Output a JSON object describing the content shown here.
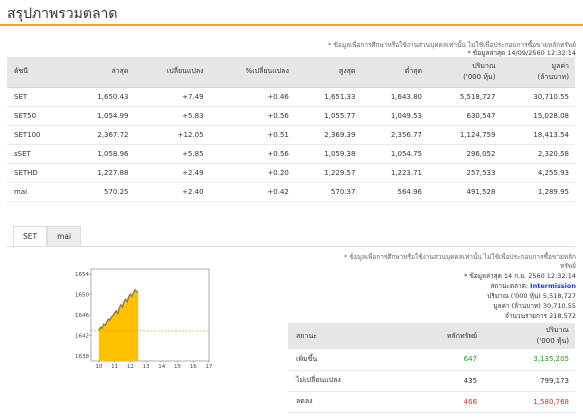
{
  "page": {
    "title": "สรุปภาพรวมตลาด",
    "note": "* ข้อมูลเพื่อการศึกษาหรือใช้งานส่วนบุคคลเท่านั้น ไม่ใช้เพื่อประกอบการซื้อขายหลักทรัพย์",
    "last_update": "* ข้อมูลล่าสุด 14/09/2560 12:32:14"
  },
  "table": {
    "headers": [
      "ดัชนี",
      "ล่าสุด",
      "เปลี่ยนแปลง",
      "%เปลี่ยนแปลง",
      "สูงสุด",
      "ต่ำสุด",
      "ปริมาณ\n('000 หุ้น)",
      "มูลค่า\n(ล้านบาท)"
    ],
    "rows": [
      {
        "name": "SET",
        "last": "1,650.43",
        "change": "+7.49",
        "pct": "+0.46",
        "high": "1,651.33",
        "low": "1,643.80",
        "volume": "5,518,727",
        "value": "30,710.55",
        "link": false
      },
      {
        "name": "SET50",
        "last": "1,054.99",
        "change": "+5.83",
        "pct": "+0.56",
        "high": "1,055.77",
        "low": "1,049.53",
        "volume": "630,547",
        "value": "15,028.08",
        "link": true
      },
      {
        "name": "SET100",
        "last": "2,367.72",
        "change": "+12.05",
        "pct": "+0.51",
        "high": "2,369.39",
        "low": "2,356.77",
        "volume": "1,124,759",
        "value": "18,413.54",
        "link": true
      },
      {
        "name": "sSET",
        "last": "1,058.96",
        "change": "+5.85",
        "pct": "+0.56",
        "high": "1,059.38",
        "low": "1,054.75",
        "volume": "296,052",
        "value": "2,320.58",
        "link": true
      },
      {
        "name": "SETHD",
        "last": "1,227.88",
        "change": "+2.49",
        "pct": "+0.20",
        "high": "1,229.57",
        "low": "1,223.71",
        "volume": "257,533",
        "value": "4,255.93",
        "link": true
      },
      {
        "name": "mai",
        "last": "570.25",
        "change": "+2.40",
        "pct": "+0.42",
        "high": "570.37",
        "low": "564.96",
        "volume": "491,528",
        "value": "1,289.95",
        "link": false
      }
    ]
  },
  "tabs": [
    {
      "label": "SET",
      "active": true
    },
    {
      "label": "mai",
      "active": false
    }
  ],
  "chart_data": {
    "type": "area",
    "title": "",
    "xlabel": "",
    "ylabel": "",
    "x_ticks": [
      "10",
      "11",
      "12",
      "13",
      "14",
      "15",
      "16",
      "17"
    ],
    "y_ticks": [
      "1654",
      "1650",
      "1646",
      "1642",
      "1638"
    ],
    "xlim": [
      9.5,
      17
    ],
    "ylim": [
      1637,
      1655
    ],
    "series": [
      {
        "x": [
          10.0,
          10.1,
          10.2,
          10.3,
          10.4,
          10.5,
          10.6,
          10.7,
          10.8,
          10.9,
          11.0,
          11.1,
          11.2,
          11.3,
          11.4,
          11.5,
          11.6,
          11.7,
          11.8,
          11.9,
          12.0,
          12.1,
          12.2,
          12.3,
          12.4,
          12.5
        ],
        "values": [
          1643.0,
          1643.6,
          1643.4,
          1644.2,
          1644.0,
          1644.6,
          1645.2,
          1645.0,
          1645.6,
          1645.9,
          1646.4,
          1646.8,
          1646.3,
          1647.4,
          1648.0,
          1647.6,
          1648.6,
          1649.1,
          1648.6,
          1649.6,
          1650.1,
          1649.6,
          1650.4,
          1650.9,
          1650.6,
          1650.4
        ]
      }
    ],
    "reference_line": 1642.9,
    "grid": false,
    "colors": {
      "fill": "#ffc000",
      "line": "#7b7b7b",
      "reference": "#f5a000"
    }
  },
  "info": {
    "note": "* ข้อมูลเพื่อการศึกษาหรือใช้งานส่วนบุคคลเท่านั้น ไม่ใช้เพื่อประกอบการซื้อขายหลัก",
    "note_cont": "ทรัพย์",
    "last_update": "* ข้อมูลล่าสุด 14 ก.ย. 2560 12:32:14",
    "status_label": "สถานะตลาด:",
    "status_value": "Intermission",
    "volume": "ปริมาณ ('000 หุ้น) 5,518,727",
    "value": "มูลค่า (ล้านบาท) 30,710.55",
    "deals": "จำนวนรายการ 218,572"
  },
  "breadth": {
    "headers": [
      "สถานะ",
      "หลักทรัพย์",
      "ปริมาณ\n('000 หุ้น)"
    ],
    "rows": [
      {
        "status": "เพิ่มขึ้น",
        "count": "647",
        "volume": "3,135,205",
        "tone": "up"
      },
      {
        "status": "ไม่เปลี่ยนแปลง",
        "count": "435",
        "volume": "799,173",
        "tone": "flat"
      },
      {
        "status": "ลดลง",
        "count": "466",
        "volume": "1,580,768",
        "tone": "down"
      }
    ]
  },
  "colors": {
    "accent": "#f3a700",
    "up": "#1a9a24",
    "down": "#d22b2b",
    "link": "#2f66b0",
    "status": "#2035c9"
  }
}
